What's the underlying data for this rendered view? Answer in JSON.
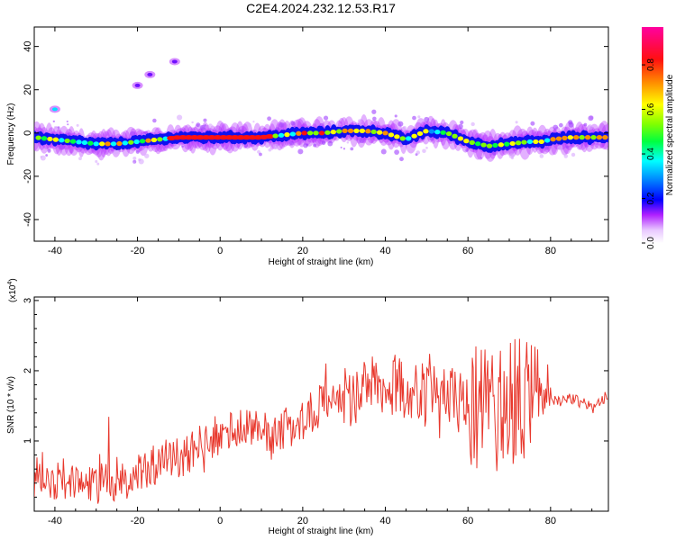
{
  "title": "C2E4.2024.232.12.53.R17",
  "chart_data": [
    {
      "type": "heatmap",
      "xlabel": "Height of straight line (km)",
      "ylabel": "Frequency (Hz)",
      "xlim": [
        -45,
        94
      ],
      "ylim": [
        -50,
        49
      ],
      "xticks": [
        "-40",
        "-20",
        "0",
        "20",
        "40",
        "60",
        "80"
      ],
      "yticks": [
        "40",
        "20",
        "0",
        "-20",
        "-40"
      ],
      "colorbar": {
        "label": "Normalized spectral amplitude",
        "range": [
          0,
          0.97
        ],
        "ticks": [
          "0.0",
          "0.2",
          "0.4",
          "0.6",
          "0.8"
        ]
      },
      "ridge": {
        "x": [
          -45,
          -40,
          -35,
          -30,
          -25,
          -20,
          -15,
          -10,
          -5,
          0,
          5,
          10,
          15,
          20,
          25,
          30,
          35,
          40,
          45,
          50,
          55,
          60,
          65,
          70,
          75,
          78,
          80,
          85,
          90,
          94
        ],
        "frequency": [
          -2,
          -3,
          -4,
          -5,
          -5,
          -4,
          -3,
          -2,
          -2,
          -2,
          -2,
          -2,
          -1,
          0,
          0,
          1,
          1,
          0,
          -3,
          1,
          0,
          -4,
          -6,
          -5,
          -4,
          -4,
          -3,
          -2,
          -2,
          -2
        ]
      },
      "isolated_features": [
        {
          "x": -40,
          "frequency": 11
        },
        {
          "x": -20,
          "frequency": 22
        },
        {
          "x": -17,
          "frequency": 27
        },
        {
          "x": -11,
          "frequency": 33
        }
      ]
    },
    {
      "type": "line",
      "xlabel": "Height of straight line (km)",
      "ylabel": "SNR (10 * v/v)",
      "y_multiplier": "(x10^4)",
      "xlim": [
        -45,
        94
      ],
      "ylim": [
        0,
        3.05
      ],
      "xticks": [
        "-40",
        "-20",
        "0",
        "20",
        "40",
        "60",
        "80"
      ],
      "yticks": [
        "1",
        "2",
        "3"
      ],
      "series": [
        {
          "color": "#e8382d",
          "x": [
            -45,
            -40,
            -35,
            -30,
            -25,
            -20,
            -15,
            -10,
            -5,
            0,
            5,
            10,
            12,
            15,
            20,
            25,
            30,
            35,
            40,
            45,
            50,
            55,
            60,
            65,
            70,
            75,
            80,
            85,
            90,
            94
          ],
          "y": [
            0.45,
            0.4,
            0.35,
            0.4,
            0.45,
            0.5,
            0.7,
            0.75,
            0.95,
            1.1,
            1.2,
            1.25,
            0.95,
            1.15,
            1.3,
            1.55,
            1.6,
            1.75,
            1.85,
            1.7,
            1.65,
            1.6,
            1.55,
            1.4,
            1.5,
            1.7,
            1.55,
            1.6,
            1.5,
            1.65
          ]
        }
      ]
    }
  ]
}
